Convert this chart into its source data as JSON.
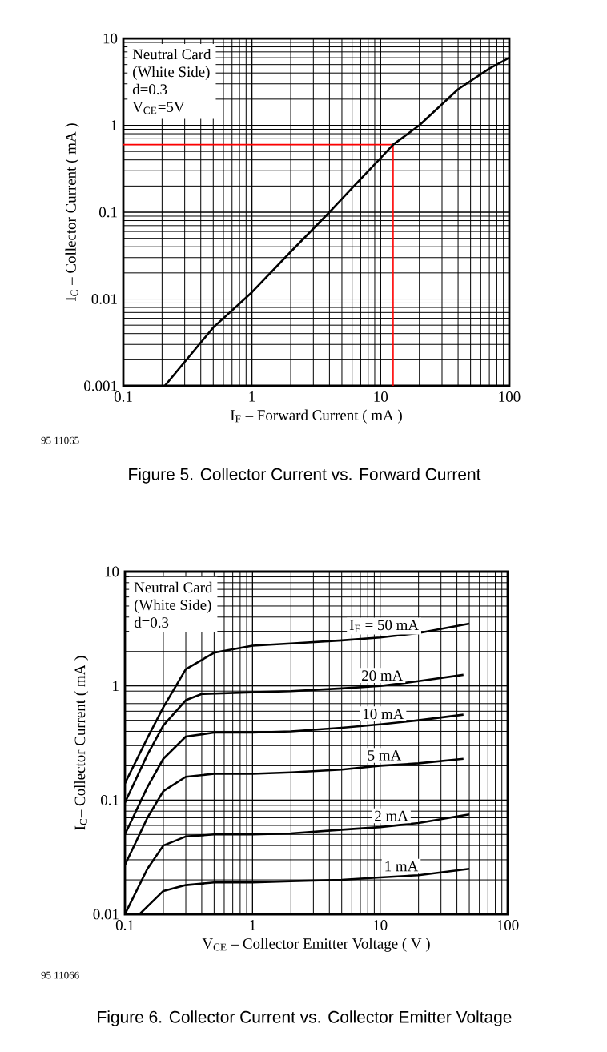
{
  "chart_data": [
    {
      "type": "line",
      "title": "Figure 5.  Collector Current vs. Forward Current",
      "xlabel": "I$_{F}$ – Forward Current ( mA )",
      "ylabel": "I$_{C}$ – Collector Current ( mA )",
      "log": "xy",
      "grid": true,
      "color": "#000000",
      "xlim": [
        0.1,
        100
      ],
      "ylim": [
        0.001,
        10
      ],
      "xticks": [
        0.1,
        1,
        10,
        100
      ],
      "yticks": [
        0.001,
        0.01,
        0.1,
        1,
        10
      ],
      "x": [
        0.21,
        0.5,
        1,
        2,
        4,
        6,
        10,
        12.5,
        20,
        40,
        70,
        100
      ],
      "values": [
        0.001,
        0.0047,
        0.012,
        0.035,
        0.1,
        0.19,
        0.42,
        0.6,
        1.0,
        2.6,
        4.5,
        6
      ],
      "ref_lines": [
        {
          "axis": "x",
          "value": 12.5,
          "color": "#ff0000"
        },
        {
          "axis": "y",
          "value": 0.6,
          "color": "#ff0000"
        }
      ],
      "annotations": [
        "Neutral Card",
        "(White Side)",
        "d=0.3",
        "V$_{CE}$=5V",
        "95 11065"
      ]
    },
    {
      "type": "line",
      "title": "Figure 6.  Collector Current vs. Collector Emitter Voltage",
      "xlabel": "V$_{CE}$ – Collector Emitter Voltage ( V )",
      "ylabel": "I$_{C}$– Collector Current ( mA )",
      "log": "xy",
      "grid": true,
      "xlim": [
        0.1,
        100
      ],
      "ylim": [
        0.01,
        10
      ],
      "xticks": [
        0.1,
        1,
        10,
        100
      ],
      "yticks": [
        0.01,
        0.1,
        1,
        10
      ],
      "series": [
        {
          "name": "I$_{F}$ = 50 mA",
          "color": "#000000",
          "x": [
            0.1,
            0.15,
            0.2,
            0.3,
            0.5,
            1,
            2,
            5,
            10,
            20,
            50
          ],
          "values": [
            0.14,
            0.35,
            0.65,
            1.4,
            1.95,
            2.25,
            2.35,
            2.5,
            2.65,
            2.9,
            3.5
          ]
        },
        {
          "name": "20 mA",
          "color": "#000000",
          "x": [
            0.1,
            0.15,
            0.2,
            0.3,
            0.4,
            1,
            2,
            5,
            10,
            20,
            45
          ],
          "values": [
            0.095,
            0.25,
            0.45,
            0.75,
            0.85,
            0.88,
            0.9,
            0.95,
            1.0,
            1.1,
            1.25
          ]
        },
        {
          "name": "10 mA",
          "color": "#000000",
          "x": [
            0.1,
            0.15,
            0.2,
            0.3,
            0.5,
            1,
            2,
            5,
            10,
            20,
            45
          ],
          "values": [
            0.05,
            0.13,
            0.23,
            0.36,
            0.39,
            0.39,
            0.4,
            0.43,
            0.46,
            0.5,
            0.56
          ]
        },
        {
          "name": "5 mA",
          "color": "#000000",
          "x": [
            0.1,
            0.15,
            0.2,
            0.3,
            0.5,
            1,
            2,
            5,
            10,
            20,
            45
          ],
          "values": [
            0.027,
            0.07,
            0.12,
            0.16,
            0.17,
            0.17,
            0.175,
            0.185,
            0.2,
            0.21,
            0.23
          ]
        },
        {
          "name": "2 mA",
          "color": "#000000",
          "x": [
            0.1,
            0.15,
            0.2,
            0.3,
            0.5,
            1,
            2,
            5,
            10,
            20,
            50
          ],
          "values": [
            0.01,
            0.025,
            0.04,
            0.048,
            0.05,
            0.05,
            0.051,
            0.055,
            0.058,
            0.063,
            0.075
          ]
        },
        {
          "name": "1 mA",
          "color": "#000000",
          "x": [
            0.13,
            0.2,
            0.3,
            0.5,
            1,
            2,
            5,
            10,
            20,
            50
          ],
          "values": [
            0.01,
            0.016,
            0.018,
            0.019,
            0.019,
            0.0195,
            0.02,
            0.021,
            0.022,
            0.025
          ]
        }
      ],
      "annotations": [
        "Neutral Card",
        "(White Side)",
        "d=0.3",
        "95 11066"
      ]
    }
  ]
}
